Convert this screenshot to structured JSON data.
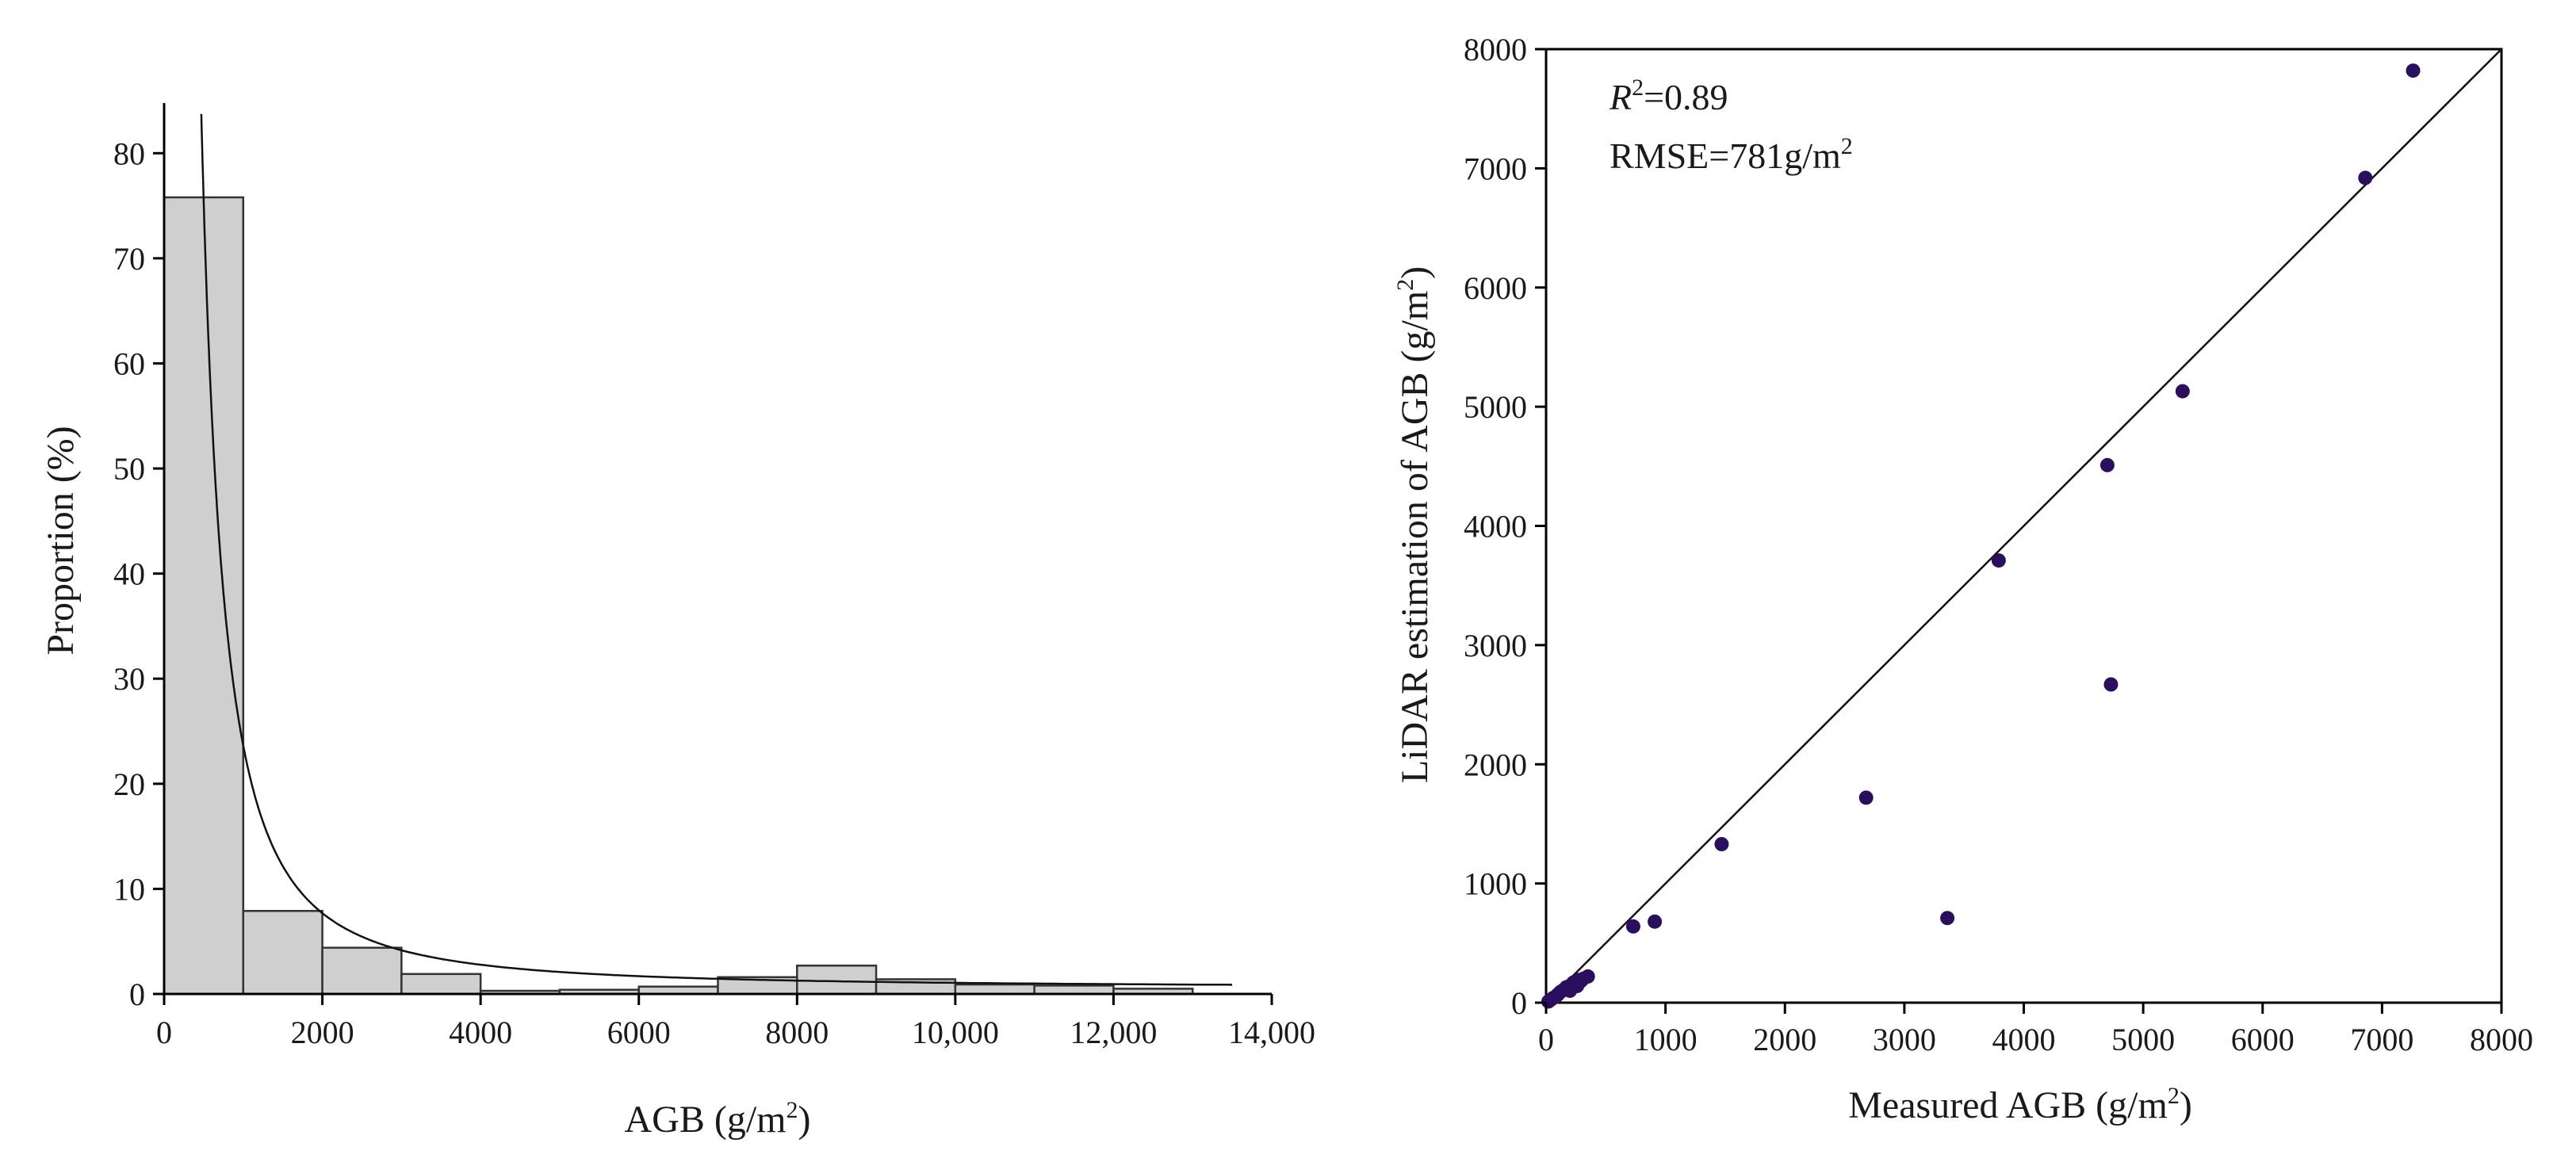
{
  "chart_data": [
    {
      "type": "bar",
      "subtype": "histogram",
      "xlabel": "AGB (g/m",
      "xlabel_sup": "2",
      "xlabel_end": ")",
      "ylabel": "Proportion (%)",
      "xlim": [
        0,
        14000
      ],
      "ylim": [
        0,
        85
      ],
      "x_ticks": [
        0,
        2000,
        4000,
        6000,
        8000,
        10000,
        12000,
        14000
      ],
      "x_tick_labels": [
        "0",
        "2000",
        "4000",
        "6000",
        "8000",
        "10,000",
        "12,000",
        "14,000"
      ],
      "y_ticks": [
        0,
        10,
        20,
        30,
        40,
        50,
        60,
        70,
        80
      ],
      "y_tick_labels": [
        "0",
        "10",
        "20",
        "30",
        "40",
        "50",
        "60",
        "70",
        "80"
      ],
      "bin_edges": [
        0,
        1000,
        2000,
        3000,
        4000,
        5000,
        6000,
        7000,
        8000,
        9000,
        10000,
        11000,
        12000,
        13000
      ],
      "values": [
        75.8,
        7.9,
        4.4,
        1.9,
        0.3,
        0.4,
        0.7,
        1.6,
        2.7,
        1.4,
        0.9,
        0.8,
        0.5
      ],
      "fit_curve": {
        "type": "power",
        "a": 2900000.0,
        "b": 1.7,
        "x_start": 470,
        "x_end": 13500,
        "y_offset": 0.6
      }
    },
    {
      "type": "scatter",
      "xlabel": "Measured AGB (g/m",
      "xlabel_sup": "2",
      "xlabel_end": ")",
      "ylabel": "LiDAR estimation of AGB (g/m",
      "ylabel_sup": "2",
      "ylabel_end": ")",
      "xlim": [
        0,
        8000
      ],
      "ylim": [
        0,
        8000
      ],
      "x_ticks": [
        0,
        1000,
        2000,
        3000,
        4000,
        5000,
        6000,
        7000,
        8000
      ],
      "y_ticks": [
        0,
        1000,
        2000,
        3000,
        4000,
        5000,
        6000,
        7000,
        8000
      ],
      "x_tick_labels": [
        "0",
        "1000",
        "2000",
        "3000",
        "4000",
        "5000",
        "6000",
        "7000",
        "8000"
      ],
      "y_tick_labels": [
        "0",
        "1000",
        "2000",
        "3000",
        "4000",
        "5000",
        "6000",
        "7000",
        "8000"
      ],
      "reference_line": "1:1",
      "annotations": {
        "r2_prefix": "R",
        "r2_sup": "2",
        "r2_value": "=0.89",
        "rmse_text": "RMSE=781g/m",
        "rmse_sup": "2"
      },
      "points": [
        [
          20,
          10
        ],
        [
          40,
          25
        ],
        [
          60,
          40
        ],
        [
          80,
          50
        ],
        [
          100,
          70
        ],
        [
          120,
          90
        ],
        [
          150,
          110
        ],
        [
          170,
          130
        ],
        [
          190,
          120
        ],
        [
          210,
          150
        ],
        [
          230,
          170
        ],
        [
          250,
          160
        ],
        [
          270,
          190
        ],
        [
          290,
          180
        ],
        [
          310,
          200
        ],
        [
          200,
          100
        ],
        [
          260,
          140
        ],
        [
          350,
          220
        ],
        [
          730,
          640
        ],
        [
          910,
          680
        ],
        [
          1470,
          1330
        ],
        [
          2680,
          1720
        ],
        [
          3360,
          710
        ],
        [
          3790,
          3710
        ],
        [
          4700,
          4510
        ],
        [
          4730,
          2670
        ],
        [
          5330,
          5130
        ],
        [
          6860,
          6920
        ],
        [
          7260,
          7820
        ]
      ]
    }
  ]
}
